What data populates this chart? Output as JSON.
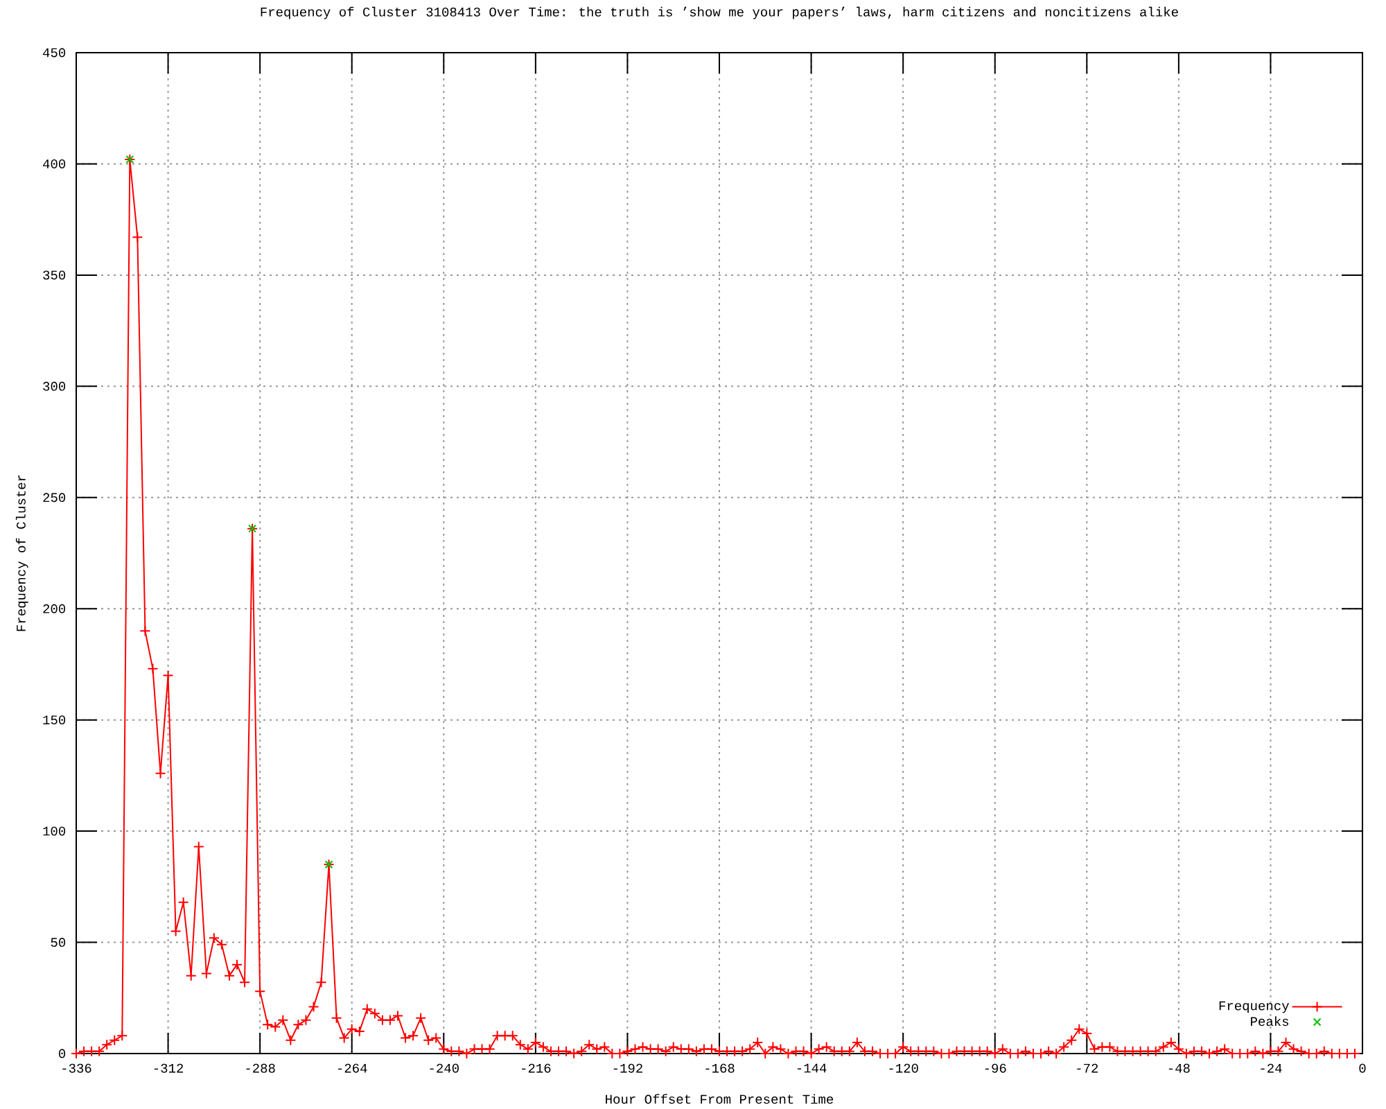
{
  "chart_data": {
    "type": "line",
    "title": "Frequency of Cluster 3108413 Over Time: the truth is ’show me your papers’ laws, harm citizens and noncitizens alike",
    "xlabel": "Hour Offset From Present Time",
    "ylabel": "Frequency of Cluster",
    "xlim": [
      -336,
      0
    ],
    "ylim": [
      0,
      450
    ],
    "xticks": [
      -336,
      -312,
      -288,
      -264,
      -240,
      -216,
      -192,
      -168,
      -144,
      -120,
      -96,
      -72,
      -48,
      -24,
      0
    ],
    "yticks": [
      0,
      50,
      100,
      150,
      200,
      250,
      300,
      350,
      400,
      450
    ],
    "grid": true,
    "legend": "bottom right",
    "marker": "cross",
    "series": [
      {
        "name": "Frequency",
        "color": "#ff0000",
        "x": [
          -336,
          -334,
          -332,
          -330,
          -328,
          -326,
          -324,
          -322,
          -320,
          -318,
          -316,
          -314,
          -312,
          -310,
          -308,
          -306,
          -304,
          -302,
          -300,
          -298,
          -296,
          -294,
          -292,
          -290,
          -288,
          -286,
          -284,
          -282,
          -280,
          -278,
          -276,
          -274,
          -272,
          -270,
          -268,
          -266,
          -264,
          -262,
          -260,
          -258,
          -256,
          -254,
          -252,
          -250,
          -248,
          -246,
          -244,
          -242,
          -240,
          -238,
          -236,
          -234,
          -232,
          -230,
          -228,
          -226,
          -224,
          -222,
          -220,
          -218,
          -216,
          -214,
          -212,
          -210,
          -208,
          -206,
          -204,
          -202,
          -200,
          -198,
          -196,
          -194,
          -192,
          -190,
          -188,
          -186,
          -184,
          -182,
          -180,
          -178,
          -176,
          -174,
          -172,
          -170,
          -168,
          -166,
          -164,
          -162,
          -160,
          -158,
          -156,
          -154,
          -152,
          -150,
          -148,
          -146,
          -144,
          -142,
          -140,
          -138,
          -136,
          -134,
          -132,
          -130,
          -128,
          -126,
          -124,
          -122,
          -120,
          -118,
          -116,
          -114,
          -112,
          -110,
          -108,
          -106,
          -104,
          -102,
          -100,
          -98,
          -96,
          -94,
          -92,
          -90,
          -88,
          -86,
          -84,
          -82,
          -80,
          -78,
          -76,
          -74,
          -72,
          -70,
          -68,
          -66,
          -64,
          -62,
          -60,
          -58,
          -56,
          -54,
          -52,
          -50,
          -48,
          -46,
          -44,
          -42,
          -40,
          -38,
          -36,
          -34,
          -32,
          -30,
          -28,
          -26,
          -24,
          -22,
          -20,
          -18,
          -16,
          -14,
          -12,
          -10,
          -8,
          -6,
          -4,
          -2
        ],
        "values": [
          0,
          1,
          1,
          1,
          4,
          6,
          8,
          402,
          367,
          190,
          173,
          126,
          170,
          55,
          68,
          35,
          93,
          36,
          52,
          49,
          35,
          40,
          32,
          236,
          28,
          13,
          12,
          15,
          6,
          13,
          15,
          21,
          32,
          85,
          16,
          7,
          11,
          10,
          20,
          18,
          15,
          15,
          17,
          7,
          8,
          16,
          6,
          7,
          2,
          1,
          1,
          0,
          2,
          2,
          2,
          8,
          8,
          8,
          4,
          2,
          5,
          3,
          1,
          1,
          1,
          0,
          1,
          4,
          2,
          3,
          0,
          0,
          1,
          2,
          3,
          2,
          2,
          1,
          3,
          2,
          2,
          1,
          2,
          2,
          1,
          1,
          1,
          1,
          2,
          5,
          0,
          3,
          2,
          0,
          1,
          1,
          0,
          2,
          3,
          1,
          1,
          1,
          5,
          1,
          1,
          0,
          0,
          0,
          3,
          1,
          1,
          1,
          1,
          0,
          0,
          1,
          1,
          1,
          1,
          1,
          0,
          2,
          0,
          0,
          1,
          0,
          0,
          1,
          0,
          3,
          6,
          11,
          9,
          2,
          3,
          3,
          1,
          1,
          1,
          1,
          1,
          1,
          3,
          5,
          2,
          0,
          1,
          1,
          0,
          1,
          2,
          0,
          0,
          0,
          1,
          0,
          1,
          1,
          5,
          2,
          1,
          0,
          0,
          1,
          0,
          0,
          0,
          0
        ]
      },
      {
        "name": "Peaks",
        "color": "#00c000",
        "type": "scatter",
        "x": [
          -322,
          -290,
          -270
        ],
        "values": [
          402,
          236,
          85
        ]
      }
    ]
  }
}
